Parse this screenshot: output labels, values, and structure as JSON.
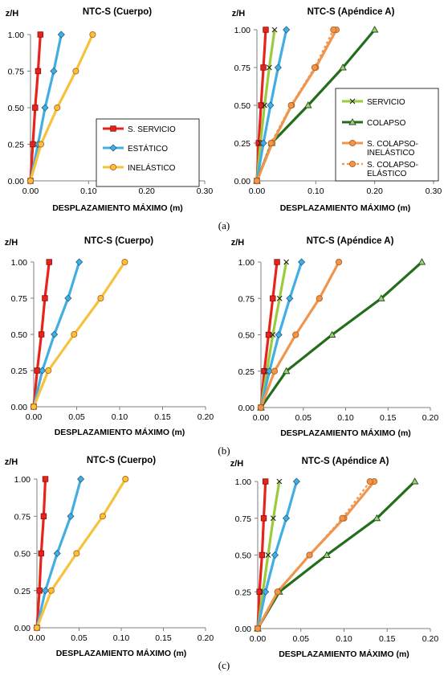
{
  "figure": {
    "panel_labels": [
      "(a)",
      "(b)",
      "(c)"
    ]
  },
  "series_styles": {
    "S. SERVICIO": {
      "color": "#e8231b",
      "marker": "square",
      "dash": false
    },
    "ESTÁTICO": {
      "color": "#43aee2",
      "marker": "diamond",
      "dash": false
    },
    "INELÁSTICO": {
      "color": "#f7c23b",
      "marker": "circle",
      "dash": false
    },
    "SERVICIO": {
      "color": "#9acb3c",
      "marker": "x",
      "dash": false
    },
    "COLAPSO": {
      "color": "#236e1c",
      "marker": "triangle",
      "dash": false
    },
    "S. COLAPSO-INELÁSTICO": {
      "color": "#f0954e",
      "marker": "circle",
      "dash": false
    },
    "S. COLAPSO-ELÁSTICO": {
      "color": "#f0954e",
      "marker": "circle",
      "dash": true
    }
  },
  "chart_data": [
    {
      "type": "line",
      "title": "NTC-S (Cuerpo)",
      "panel": "(a)",
      "xlabel": "DESPLAZAMIENTO MÁXIMO (m)",
      "ylabel": "z/H",
      "xlim": [
        0,
        0.3
      ],
      "ylim": [
        0,
        1
      ],
      "xticks": [
        "0.00",
        "0.10",
        "0.20",
        "0.30"
      ],
      "xtick_values": [
        0,
        0.1,
        0.2,
        0.3
      ],
      "yticks": [
        "0.00",
        "0.25",
        "0.50",
        "0.75",
        "1.00"
      ],
      "ytick_values": [
        0,
        0.25,
        0.5,
        0.75,
        1
      ],
      "y": [
        0,
        0.25,
        0.5,
        0.75,
        1
      ],
      "legend": {
        "entries": [
          "S. SERVICIO",
          "ESTÁTICO",
          "INELÁSTICO"
        ],
        "placement": "center-right"
      },
      "series": [
        {
          "name": "S. SERVICIO",
          "values": [
            0,
            0.004,
            0.008,
            0.013,
            0.017
          ]
        },
        {
          "name": "ESTÁTICO",
          "values": [
            0,
            0.013,
            0.025,
            0.04,
            0.053
          ]
        },
        {
          "name": "INELÁSTICO",
          "values": [
            0,
            0.018,
            0.046,
            0.078,
            0.107
          ]
        }
      ]
    },
    {
      "type": "line",
      "title": "NTC-S (Apéndice  A)",
      "panel": "(a)",
      "xlabel": "DESPLAZAMIENTO MÁXIMO (m)",
      "ylabel": "z/H",
      "xlim": [
        0,
        0.3
      ],
      "ylim": [
        0,
        1
      ],
      "xticks": [
        "0.00",
        "0.10",
        "0.20",
        "0.30"
      ],
      "xtick_values": [
        0,
        0.1,
        0.2,
        0.3
      ],
      "yticks": [
        "0.00",
        "0.25",
        "0.50",
        "0.75",
        "1.00"
      ],
      "ytick_values": [
        0,
        0.25,
        0.5,
        0.75,
        1
      ],
      "y": [
        0,
        0.25,
        0.5,
        0.75,
        1
      ],
      "legend": {
        "entries": [
          "SERVICIO",
          "COLAPSO",
          "S. COLAPSO-INELÁSTICO",
          "S. COLAPSO-ELÁSTICO"
        ],
        "entry_lines": [
          [
            "SERVICIO"
          ],
          [
            "COLAPSO"
          ],
          [
            "S. COLAPSO-",
            "INELÁSTICO"
          ],
          [
            "S. COLAPSO-",
            "ELÁSTICO"
          ]
        ],
        "placement": "center-right"
      },
      "series": [
        {
          "name": "S. SERVICIO",
          "values": [
            0,
            0.003,
            0.007,
            0.011,
            0.015
          ]
        },
        {
          "name": "SERVICIO",
          "values": [
            0,
            0.006,
            0.013,
            0.021,
            0.03
          ]
        },
        {
          "name": "ESTÁTICO",
          "values": [
            0,
            0.011,
            0.023,
            0.036,
            0.05
          ]
        },
        {
          "name": "COLAPSO",
          "values": [
            0,
            0.025,
            0.087,
            0.146,
            0.2
          ]
        },
        {
          "name": "S. COLAPSO-INELÁSTICO",
          "values": [
            0,
            0.026,
            0.059,
            0.1,
            0.135
          ]
        },
        {
          "name": "S. COLAPSO-ELÁSTICO",
          "values": [
            0,
            0.024,
            0.058,
            0.098,
            0.13
          ]
        }
      ]
    },
    {
      "type": "line",
      "title": "NTC-S (Cuerpo)",
      "panel": "(b)",
      "xlabel": "DESPLAZAMIENTO MÁXIMO (m)",
      "ylabel": "z/H",
      "xlim": [
        0,
        0.2
      ],
      "ylim": [
        0,
        1
      ],
      "xticks": [
        "0.00",
        "0.05",
        "0.10",
        "0.15",
        "0.20"
      ],
      "xtick_values": [
        0,
        0.05,
        0.1,
        0.15,
        0.2
      ],
      "yticks": [
        "0.00",
        "0.25",
        "0.50",
        "0.75",
        "1.00"
      ],
      "ytick_values": [
        0,
        0.25,
        0.5,
        0.75,
        1
      ],
      "y": [
        0,
        0.25,
        0.5,
        0.75,
        1
      ],
      "series": [
        {
          "name": "S. SERVICIO",
          "values": [
            0,
            0.004,
            0.009,
            0.013,
            0.018
          ]
        },
        {
          "name": "ESTÁTICO",
          "values": [
            0,
            0.01,
            0.024,
            0.04,
            0.053
          ]
        },
        {
          "name": "INELÁSTICO",
          "values": [
            0,
            0.017,
            0.047,
            0.078,
            0.106
          ]
        }
      ]
    },
    {
      "type": "line",
      "title": "NTC-S (Apéndice  A)",
      "panel": "(b)",
      "xlabel": "DESPLAZAMIENTO MÁXIMO (m)",
      "ylabel": "z/H",
      "xlim": [
        0,
        0.2
      ],
      "ylim": [
        0,
        1
      ],
      "xticks": [
        "0.00",
        "0.05",
        "0.10",
        "0.15",
        "0.20"
      ],
      "xtick_values": [
        0,
        0.05,
        0.1,
        0.15,
        0.2
      ],
      "yticks": [
        "0.00",
        "0.25",
        "0.50",
        "0.75",
        "1.00"
      ],
      "ytick_values": [
        0,
        0.25,
        0.5,
        0.75,
        1
      ],
      "y": [
        0,
        0.25,
        0.5,
        0.75,
        1
      ],
      "series": [
        {
          "name": "S. SERVICIO",
          "values": [
            0,
            0.004,
            0.009,
            0.014,
            0.019
          ]
        },
        {
          "name": "SERVICIO",
          "values": [
            0,
            0.007,
            0.014,
            0.022,
            0.03
          ]
        },
        {
          "name": "ESTÁTICO",
          "values": [
            0,
            0.01,
            0.021,
            0.034,
            0.048
          ]
        },
        {
          "name": "COLAPSO",
          "values": [
            0,
            0.03,
            0.084,
            0.142,
            0.19
          ]
        },
        {
          "name": "S. COLAPSO-INELÁSTICO",
          "values": [
            0,
            0.016,
            0.041,
            0.069,
            0.092
          ]
        },
        {
          "name": "S. COLAPSO-ELÁSTICO",
          "values": [
            0,
            0.016,
            0.041,
            0.069,
            0.092
          ]
        }
      ]
    },
    {
      "type": "line",
      "title": "NTC-S (Cuerpo)",
      "panel": "(c)",
      "xlabel": "DESPLAZAMIENTO MÁXIMO (m)",
      "ylabel": "z/H",
      "xlim": [
        0,
        0.2
      ],
      "ylim": [
        0,
        1
      ],
      "xticks": [
        "0.00",
        "0.05",
        "0.10",
        "0.15",
        "0.20"
      ],
      "xtick_values": [
        0,
        0.05,
        0.1,
        0.15,
        0.2
      ],
      "yticks": [
        "0.00",
        "0.25",
        "0.50",
        "0.75",
        "1.00"
      ],
      "ytick_values": [
        0,
        0.25,
        0.5,
        0.75,
        1
      ],
      "y": [
        0,
        0.25,
        0.5,
        0.75,
        1
      ],
      "series": [
        {
          "name": "S. SERVICIO",
          "values": [
            0,
            0.003,
            0.005,
            0.008,
            0.01
          ]
        },
        {
          "name": "ESTÁTICO",
          "values": [
            0,
            0.01,
            0.024,
            0.04,
            0.052
          ]
        },
        {
          "name": "INELÁSTICO",
          "values": [
            0,
            0.017,
            0.047,
            0.078,
            0.105
          ]
        }
      ]
    },
    {
      "type": "line",
      "title": "NTC-S (Apéndice  A)",
      "panel": "(c)",
      "xlabel": "DESPLAZAMIENTO MÁXIMO (m)",
      "ylabel": "z/H",
      "xlim": [
        0,
        0.2
      ],
      "ylim": [
        0,
        1
      ],
      "xticks": [
        "0.00",
        "0.05",
        "0.10",
        "0.15",
        "0.20"
      ],
      "xtick_values": [
        0,
        0.05,
        0.1,
        0.15,
        0.2
      ],
      "yticks": [
        "0.00",
        "0.25",
        "0.50",
        "0.75",
        "1.00"
      ],
      "ytick_values": [
        0,
        0.25,
        0.5,
        0.75,
        1
      ],
      "y": [
        0,
        0.25,
        0.5,
        0.75,
        1
      ],
      "series": [
        {
          "name": "S. SERVICIO",
          "values": [
            0,
            0.002,
            0.005,
            0.007,
            0.009
          ]
        },
        {
          "name": "SERVICIO",
          "values": [
            0,
            0.006,
            0.012,
            0.018,
            0.025
          ]
        },
        {
          "name": "ESTÁTICO",
          "values": [
            0,
            0.009,
            0.02,
            0.033,
            0.045
          ]
        },
        {
          "name": "COLAPSO",
          "values": [
            0,
            0.025,
            0.08,
            0.138,
            0.182
          ]
        },
        {
          "name": "S. COLAPSO-INELÁSTICO",
          "values": [
            0,
            0.023,
            0.06,
            0.1,
            0.135
          ]
        },
        {
          "name": "S. COLAPSO-ELÁSTICO",
          "values": [
            0,
            0.023,
            0.06,
            0.098,
            0.13
          ]
        }
      ]
    }
  ]
}
